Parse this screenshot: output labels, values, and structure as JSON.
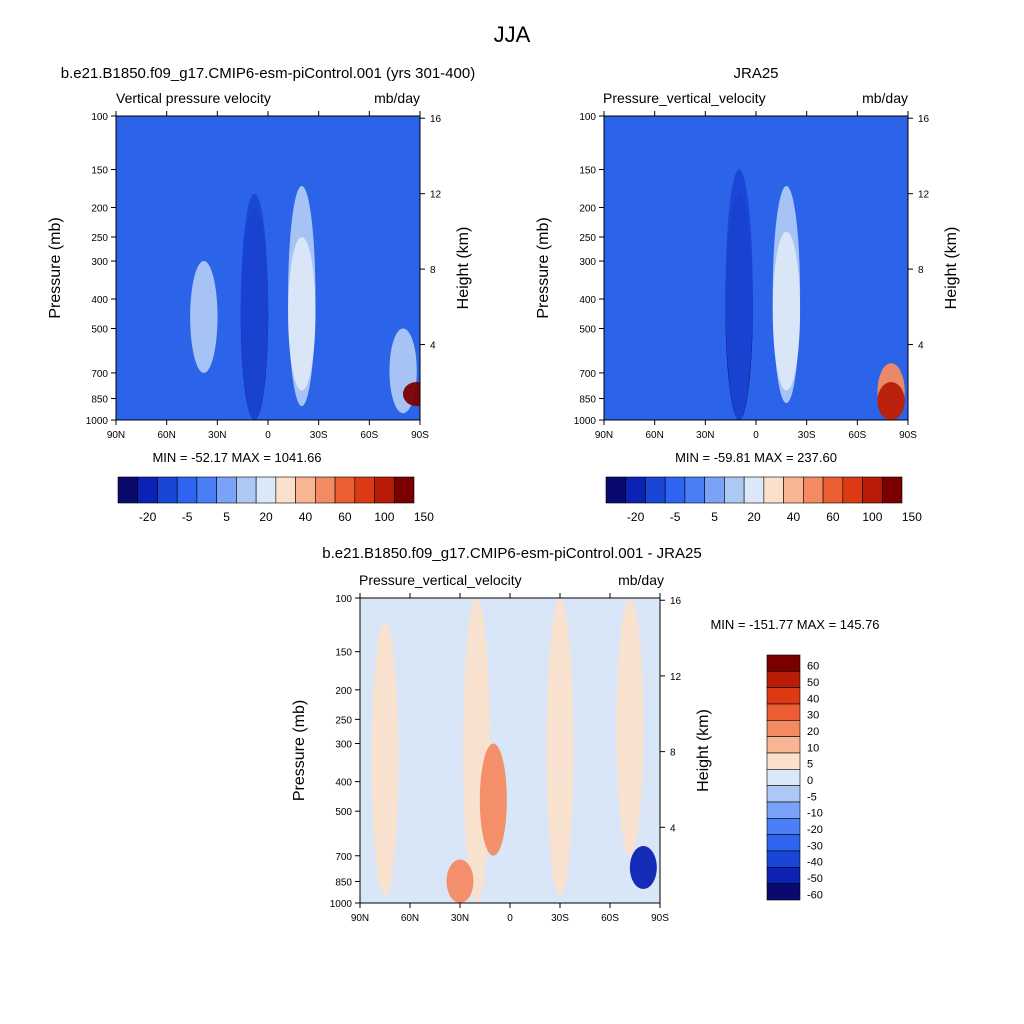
{
  "figure_title": "JJA",
  "colors": {
    "diverging_13": [
      "#0a0a6e",
      "#0b22b4",
      "#1a46d6",
      "#2d64f0",
      "#4b7ff7",
      "#7aa2f7",
      "#aec8f5",
      "#dbe8f7",
      "#fbe0cc",
      "#f7b594",
      "#f48a62",
      "#ec5e33",
      "#dc3a14",
      "#b81c06",
      "#7a0000"
    ],
    "field_fill": "#2b64e8",
    "diff_neutral": "#d8e6f7"
  },
  "panels": [
    {
      "title": "b.e21.B1850.f09_g17.CMIP6-esm-piControl.001 (yrs 301-400)",
      "left_label": "Vertical pressure velocity",
      "right_label": "mb/day",
      "ylabel": "Pressure (mb)",
      "y2label": "Height (km)",
      "stats": "MIN = -52.17  MAX = 1041.66"
    },
    {
      "title": "JRA25",
      "left_label": "Pressure_vertical_velocity",
      "right_label": "mb/day",
      "ylabel": "Pressure (mb)",
      "y2label": "Height (km)",
      "stats": "MIN = -59.81  MAX = 237.60"
    },
    {
      "title": "b.e21.B1850.f09_g17.CMIP6-esm-piControl.001 - JRA25",
      "left_label": "Pressure_vertical_velocity",
      "right_label": "mb/day",
      "ylabel": "Pressure (mb)",
      "y2label": "Height (km)",
      "stats": "MIN = -151.77  MAX = 145.76"
    }
  ],
  "chart_data": [
    {
      "type": "heatmap",
      "title": "b.e21.B1850.f09_g17.CMIP6-esm-piControl.001 (yrs 301-400)",
      "xlabel": "",
      "ylabel": "Pressure (mb)",
      "y2label": "Height (km)",
      "x_ticks": [
        "90N",
        "60N",
        "30N",
        "0",
        "30S",
        "60S",
        "90S"
      ],
      "y_ticks": [
        100,
        150,
        200,
        250,
        300,
        400,
        500,
        700,
        850,
        1000
      ],
      "y2_ticks": [
        16,
        12,
        8,
        4
      ],
      "ylim": [
        1000,
        100
      ],
      "colorbar_labels": [
        "-20",
        "-5",
        "5",
        "20",
        "40",
        "60",
        "100",
        "150"
      ],
      "min": -52.17,
      "max": 1041.66,
      "features": [
        {
          "lat": 8,
          "p_top": 200,
          "p_bottom": 1000,
          "level": 0
        },
        {
          "lat": 8,
          "p_top": 180,
          "p_bottom": 1000,
          "level": 2
        },
        {
          "lat": -20,
          "p_top": 170,
          "p_bottom": 900,
          "level": 6
        },
        {
          "lat": -20,
          "p_top": 250,
          "p_bottom": 800,
          "level": 7
        },
        {
          "lat": 38,
          "p_top": 300,
          "p_bottom": 700,
          "level": 6
        },
        {
          "lat": -80,
          "p_top": 500,
          "p_bottom": 950,
          "level": 6
        },
        {
          "lat": -88,
          "p_top": 750,
          "p_bottom": 900,
          "level": 14
        }
      ]
    },
    {
      "type": "heatmap",
      "title": "JRA25",
      "xlabel": "",
      "ylabel": "Pressure (mb)",
      "y2label": "Height (km)",
      "x_ticks": [
        "90N",
        "60N",
        "30N",
        "0",
        "30S",
        "60S",
        "90S"
      ],
      "y_ticks": [
        100,
        150,
        200,
        250,
        300,
        400,
        500,
        700,
        850,
        1000
      ],
      "y2_ticks": [
        16,
        12,
        8,
        4
      ],
      "ylim": [
        1000,
        100
      ],
      "colorbar_labels": [
        "-20",
        "-5",
        "5",
        "20",
        "40",
        "60",
        "100",
        "150"
      ],
      "min": -59.81,
      "max": 237.6,
      "features": [
        {
          "lat": 10,
          "p_top": 180,
          "p_bottom": 1000,
          "level": 0
        },
        {
          "lat": 10,
          "p_top": 150,
          "p_bottom": 1000,
          "level": 2
        },
        {
          "lat": -18,
          "p_top": 170,
          "p_bottom": 880,
          "level": 6
        },
        {
          "lat": -18,
          "p_top": 240,
          "p_bottom": 800,
          "level": 7
        },
        {
          "lat": -80,
          "p_top": 650,
          "p_bottom": 1000,
          "level": 10
        },
        {
          "lat": -80,
          "p_top": 750,
          "p_bottom": 1000,
          "level": 13
        }
      ]
    },
    {
      "type": "heatmap",
      "title": "b.e21.B1850.f09_g17.CMIP6-esm-piControl.001 - JRA25",
      "xlabel": "",
      "ylabel": "Pressure (mb)",
      "y2label": "Height (km)",
      "x_ticks": [
        "90N",
        "60N",
        "30N",
        "0",
        "30S",
        "60S",
        "90S"
      ],
      "y_ticks": [
        100,
        150,
        200,
        250,
        300,
        400,
        500,
        700,
        850,
        1000
      ],
      "y2_ticks": [
        16,
        12,
        8,
        4
      ],
      "ylim": [
        1000,
        100
      ],
      "colorbar_labels": [
        "60",
        "50",
        "40",
        "30",
        "20",
        "10",
        "5",
        "0",
        "-5",
        "-10",
        "-20",
        "-30",
        "-40",
        "-50",
        "-60"
      ],
      "min": -151.77,
      "max": 145.76,
      "features": [
        {
          "lat": 75,
          "p_top": 120,
          "p_bottom": 950,
          "level": 8
        },
        {
          "lat": 20,
          "p_top": 100,
          "p_bottom": 1000,
          "level": 8
        },
        {
          "lat": -30,
          "p_top": 100,
          "p_bottom": 950,
          "level": 8
        },
        {
          "lat": -72,
          "p_top": 100,
          "p_bottom": 700,
          "level": 8
        },
        {
          "lat": 30,
          "p_top": 720,
          "p_bottom": 1000,
          "level": 10
        },
        {
          "lat": 10,
          "p_top": 300,
          "p_bottom": 700,
          "level": 10
        },
        {
          "lat": -80,
          "p_top": 650,
          "p_bottom": 900,
          "level": 1
        }
      ]
    }
  ]
}
